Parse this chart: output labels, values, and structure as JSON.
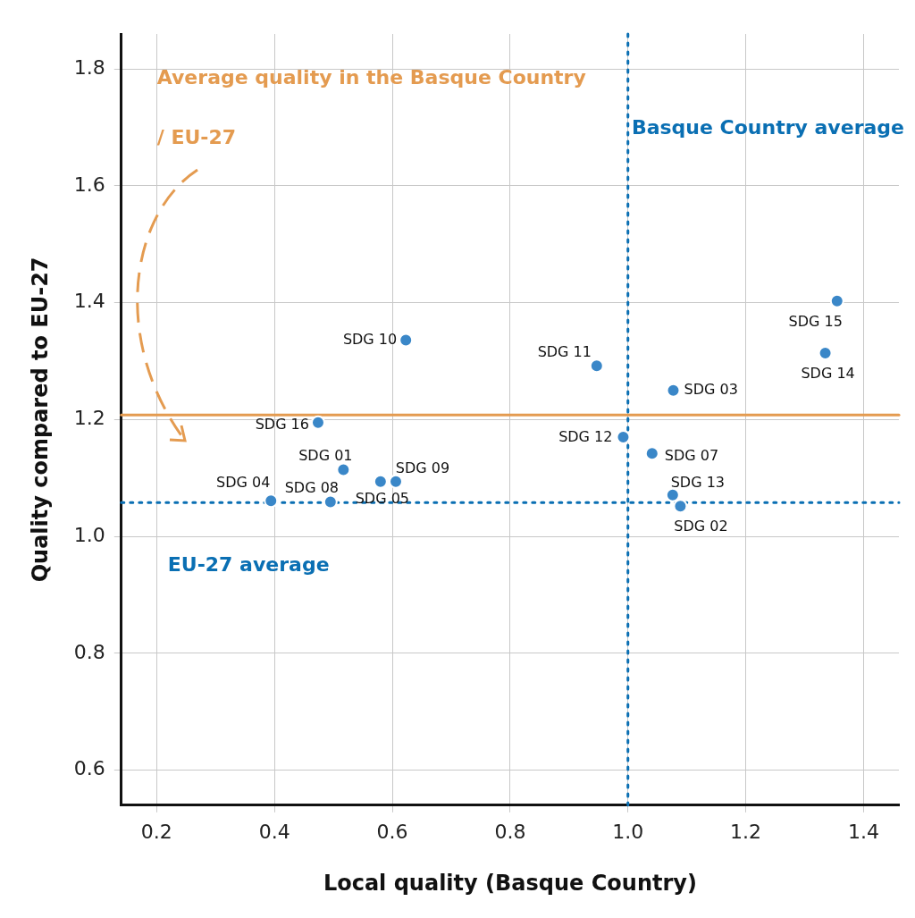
{
  "chart_data": {
    "type": "scatter",
    "xlabel": "Local quality (Basque Country)",
    "ylabel": "Quality compared to EU-27",
    "xlim": [
      0.14,
      1.46
    ],
    "ylim": [
      0.54,
      1.86
    ],
    "xticks": [
      {
        "value": 0.2,
        "label": "0.2"
      },
      {
        "value": 0.4,
        "label": "0.4"
      },
      {
        "value": 0.6,
        "label": "0.6"
      },
      {
        "value": 0.8,
        "label": "0.8"
      },
      {
        "value": 1.0,
        "label": "1.0"
      },
      {
        "value": 1.2,
        "label": "1.2"
      },
      {
        "value": 1.4,
        "label": "1.4"
      }
    ],
    "yticks": [
      {
        "value": 0.6,
        "label": "0.6"
      },
      {
        "value": 0.8,
        "label": "0.8"
      },
      {
        "value": 1.0,
        "label": "1.0"
      },
      {
        "value": 1.2,
        "label": "1.2"
      },
      {
        "value": 1.4,
        "label": "1.4"
      },
      {
        "value": 1.6,
        "label": "1.6"
      },
      {
        "value": 1.8,
        "label": "1.8"
      }
    ],
    "grid": true,
    "legend": false,
    "marker": "circle",
    "x": [
      0.623,
      0.947,
      1.355,
      1.335,
      1.077,
      0.474,
      0.992,
      1.041,
      0.517,
      0.606,
      0.58,
      1.076,
      0.394,
      0.495,
      1.089
    ],
    "values": [
      1.336,
      1.292,
      1.403,
      1.314,
      1.25,
      1.195,
      1.17,
      1.142,
      1.114,
      1.094,
      1.094,
      1.071,
      1.061,
      1.059,
      1.052
    ],
    "value_labels": [
      "SDG 10",
      "SDG 11",
      "SDG 15",
      "SDG 14",
      "SDG 03",
      "SDG 16",
      "SDG 12",
      "SDG 07",
      "SDG 01",
      "SDG 09",
      "SDG 05",
      "SDG 13",
      "SDG 04",
      "SDG 08",
      "SDG 02"
    ],
    "color": "#3a87c8",
    "ref_lines": [
      {
        "axis": "x",
        "value": 1.0,
        "label": "Basque Country average",
        "color": "#0a6fb3",
        "line_style": "dotted"
      },
      {
        "axis": "y",
        "value": 1.058,
        "label": "EU-27 average",
        "color": "#0a6fb3",
        "line_style": "dotted"
      },
      {
        "axis": "y",
        "value": 1.208,
        "label": "Average quality in the Basque Country / EU-27",
        "color": "#e49b50",
        "line_style": "solid"
      }
    ]
  }
}
